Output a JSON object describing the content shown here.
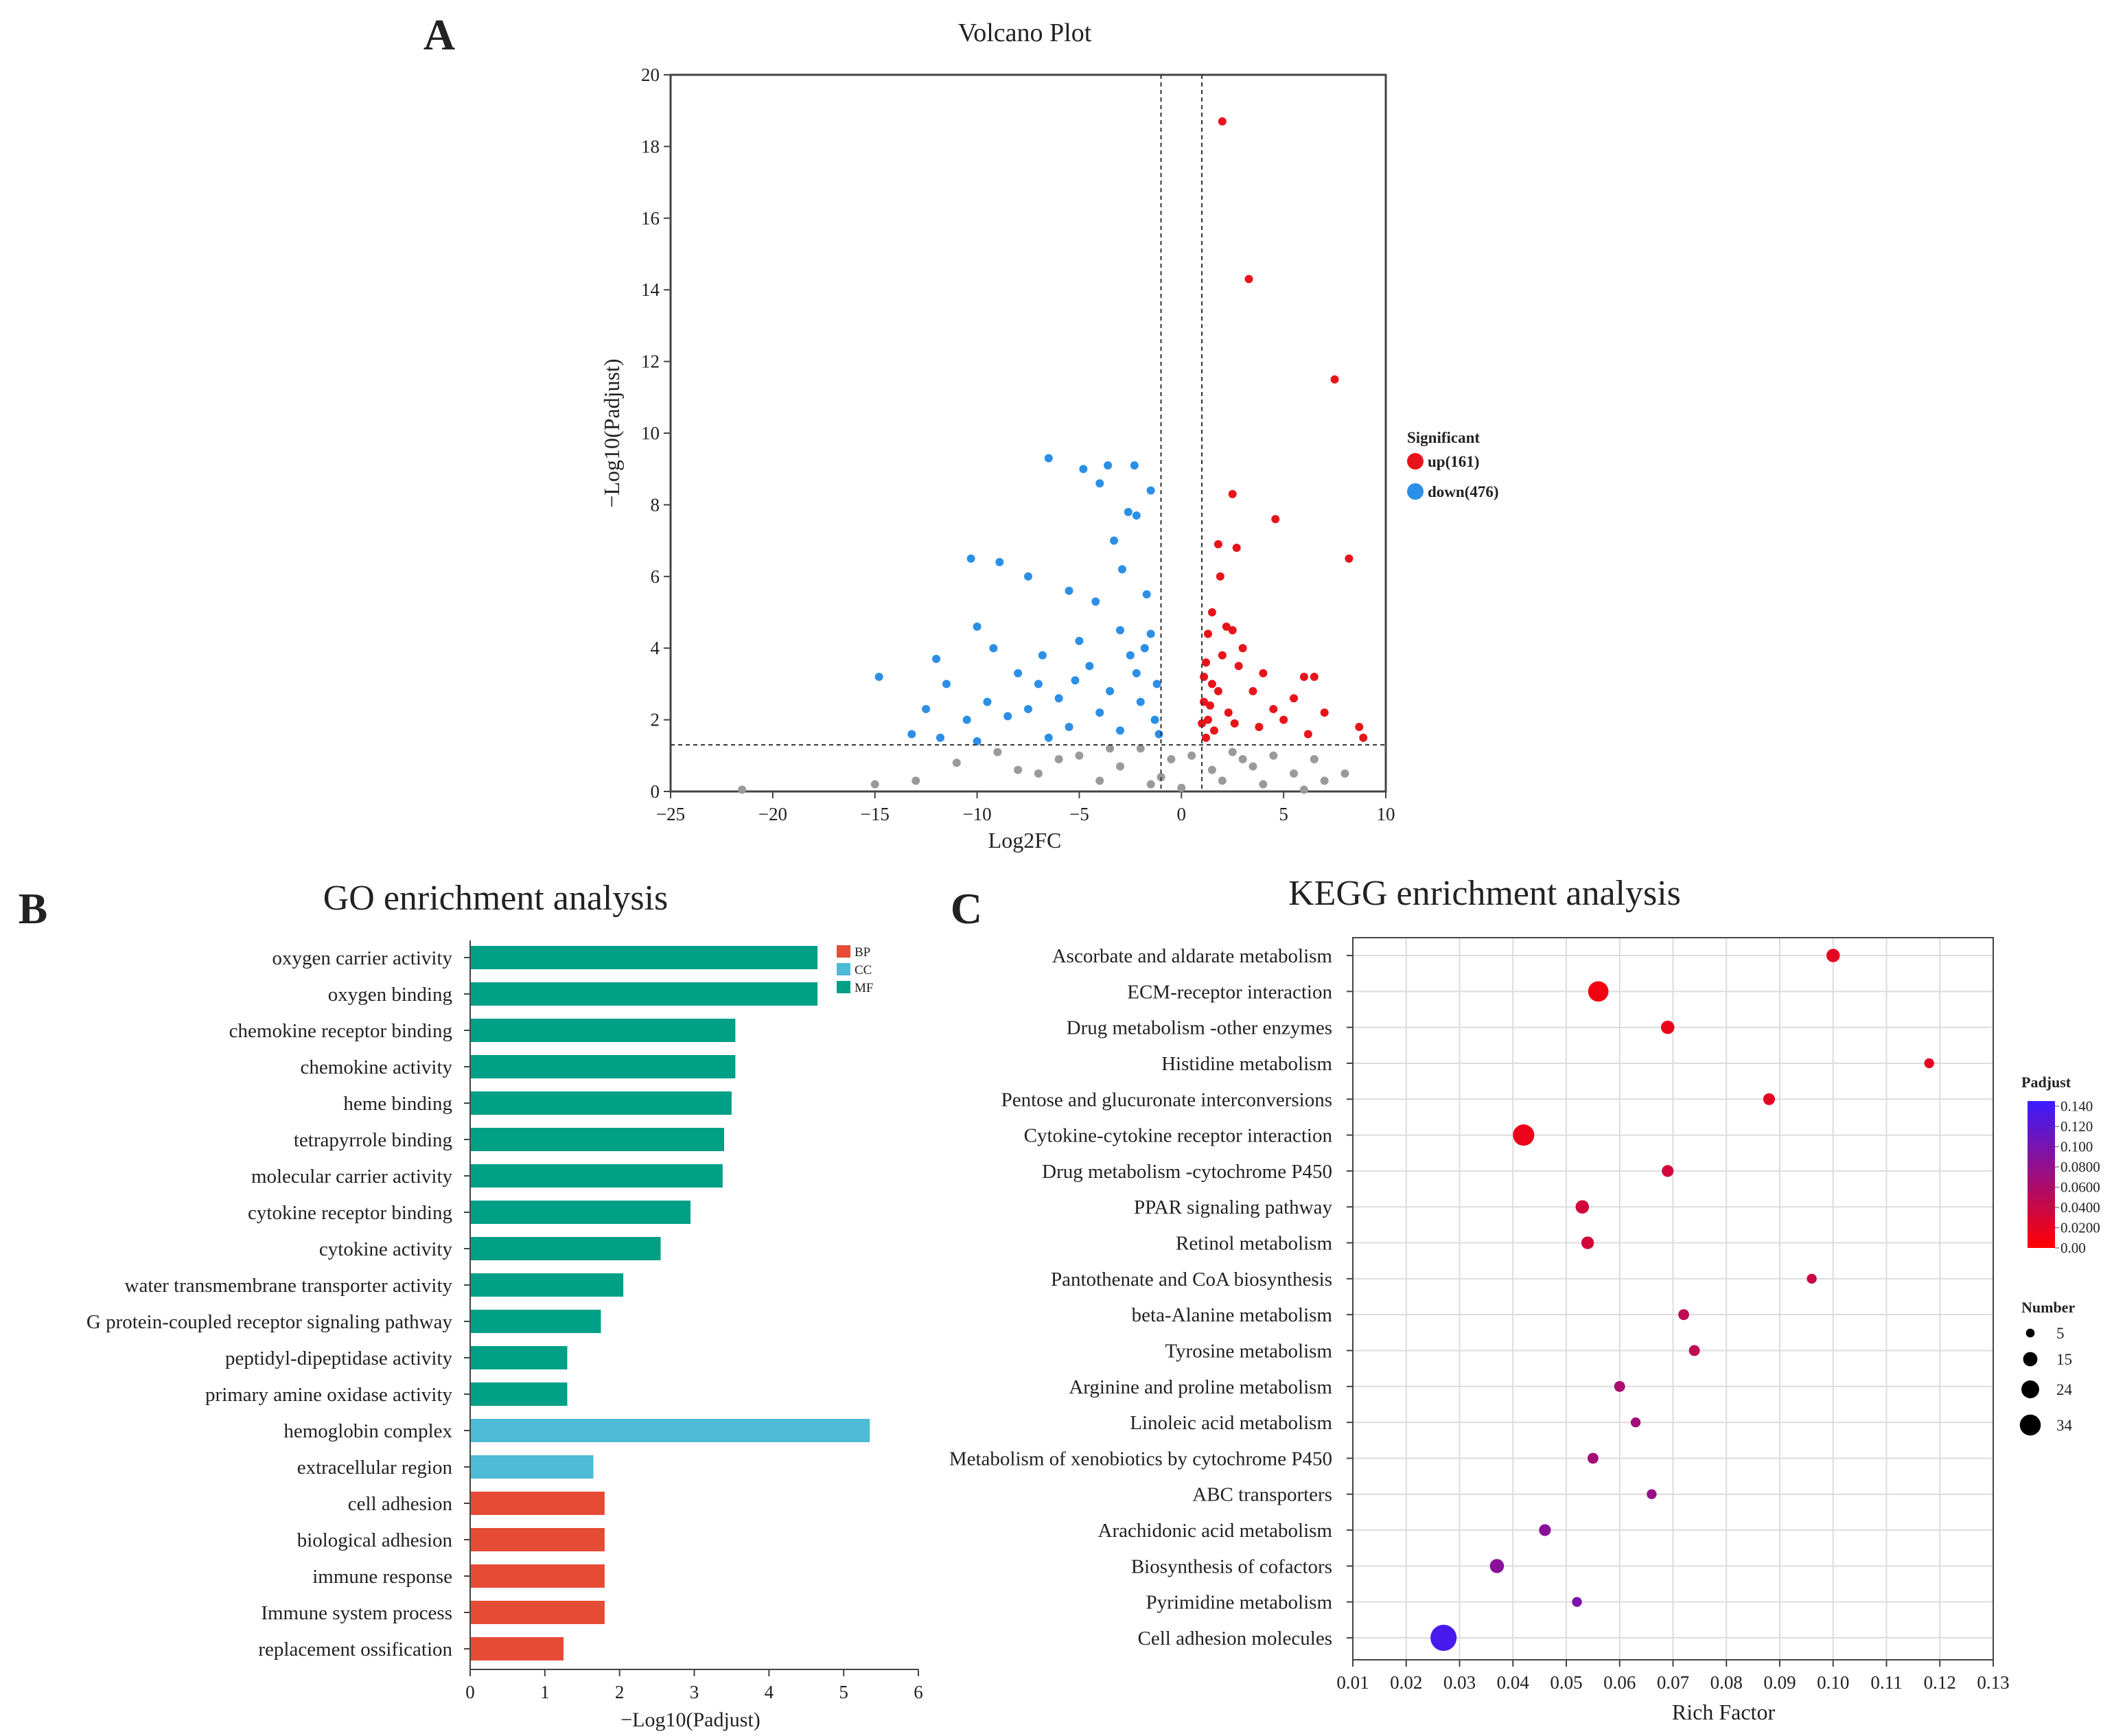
{
  "panels": {
    "a": "A",
    "b": "B",
    "c": "C"
  },
  "chart_data": [
    {
      "type": "scatter",
      "title": "Volcano Plot",
      "xlabel": "Log2FC",
      "ylabel": "−Log10(Padjust)",
      "xlim": [
        -25,
        10
      ],
      "ylim": [
        0,
        20
      ],
      "xticks": [
        -25,
        -20,
        -15,
        -10,
        -5,
        0,
        5,
        10
      ],
      "yticks": [
        0,
        2,
        4,
        6,
        8,
        10,
        12,
        14,
        16,
        18,
        20
      ],
      "thresholds": {
        "log2fc": [
          -1,
          1
        ],
        "neg_log10_padj": 1.3
      },
      "legend": {
        "title": "Significant",
        "placement": "right"
      },
      "series": [
        {
          "name": "up(161)",
          "color": "#e8141b",
          "points": [
            [
              2.0,
              18.7
            ],
            [
              3.3,
              14.3
            ],
            [
              7.5,
              11.5
            ],
            [
              2.5,
              8.3
            ],
            [
              4.6,
              7.6
            ],
            [
              8.2,
              6.5
            ],
            [
              1.8,
              6.9
            ],
            [
              2.7,
              6.8
            ],
            [
              1.9,
              6.0
            ],
            [
              1.5,
              5.0
            ],
            [
              2.2,
              4.6
            ],
            [
              2.5,
              4.5
            ],
            [
              1.3,
              4.4
            ],
            [
              3.0,
              4.0
            ],
            [
              2.0,
              3.8
            ],
            [
              1.2,
              3.6
            ],
            [
              2.8,
              3.5
            ],
            [
              4.0,
              3.3
            ],
            [
              6.0,
              3.2
            ],
            [
              6.5,
              3.2
            ],
            [
              5.5,
              2.6
            ],
            [
              7.0,
              2.2
            ],
            [
              8.7,
              1.8
            ],
            [
              8.9,
              1.5
            ],
            [
              3.5,
              2.8
            ],
            [
              4.5,
              2.3
            ],
            [
              5.0,
              2.0
            ],
            [
              6.2,
              1.6
            ],
            [
              1.1,
              2.5
            ],
            [
              1.3,
              2.0
            ],
            [
              1.5,
              3.0
            ],
            [
              1.6,
              1.7
            ],
            [
              1.2,
              1.5
            ],
            [
              2.3,
              2.2
            ],
            [
              1.8,
              2.8
            ],
            [
              1.1,
              3.2
            ],
            [
              2.6,
              1.9
            ],
            [
              3.8,
              1.8
            ],
            [
              1.4,
              2.4
            ],
            [
              1.0,
              1.9
            ]
          ]
        },
        {
          "name": "down(476)",
          "color": "#2b8fe6",
          "points": [
            [
              -6.5,
              9.3
            ],
            [
              -4.8,
              9.0
            ],
            [
              -3.6,
              9.1
            ],
            [
              -2.3,
              9.1
            ],
            [
              -4.0,
              8.6
            ],
            [
              -1.5,
              8.4
            ],
            [
              -2.6,
              7.8
            ],
            [
              -2.2,
              7.7
            ],
            [
              -3.3,
              7.0
            ],
            [
              -10.3,
              6.5
            ],
            [
              -8.9,
              6.4
            ],
            [
              -7.5,
              6.0
            ],
            [
              -5.5,
              5.6
            ],
            [
              -4.2,
              5.3
            ],
            [
              -1.7,
              5.5
            ],
            [
              -2.9,
              6.2
            ],
            [
              -10.0,
              4.6
            ],
            [
              -12.0,
              3.7
            ],
            [
              -14.8,
              3.2
            ],
            [
              -11.5,
              3.0
            ],
            [
              -9.2,
              4.0
            ],
            [
              -6.8,
              3.8
            ],
            [
              -5.0,
              4.2
            ],
            [
              -3.0,
              4.5
            ],
            [
              -1.5,
              4.4
            ],
            [
              -8.0,
              3.3
            ],
            [
              -7.0,
              3.0
            ],
            [
              -4.5,
              3.5
            ],
            [
              -2.5,
              3.8
            ],
            [
              -1.2,
              3.0
            ],
            [
              -13.2,
              1.6
            ],
            [
              -11.8,
              1.5
            ],
            [
              -10.5,
              2.0
            ],
            [
              -9.5,
              2.5
            ],
            [
              -8.5,
              2.1
            ],
            [
              -7.5,
              2.3
            ],
            [
              -6.0,
              2.6
            ],
            [
              -5.5,
              1.8
            ],
            [
              -4.0,
              2.2
            ],
            [
              -3.5,
              2.8
            ],
            [
              -2.0,
              2.5
            ],
            [
              -1.3,
              2.0
            ],
            [
              -1.1,
              1.6
            ],
            [
              -3.0,
              1.7
            ],
            [
              -2.2,
              3.3
            ],
            [
              -1.8,
              4.0
            ],
            [
              -6.5,
              1.5
            ],
            [
              -10.0,
              1.4
            ],
            [
              -12.5,
              2.3
            ],
            [
              -5.2,
              3.1
            ]
          ]
        },
        {
          "color": "#9a9a9a",
          "points": [
            [
              -21.5,
              0.05
            ],
            [
              -15,
              0.2
            ],
            [
              -13,
              0.3
            ],
            [
              -11,
              0.8
            ],
            [
              -9,
              1.1
            ],
            [
              -8,
              0.6
            ],
            [
              -7,
              0.5
            ],
            [
              -6,
              0.9
            ],
            [
              -5,
              1.0
            ],
            [
              -4,
              0.3
            ],
            [
              -3.5,
              1.2
            ],
            [
              -3,
              0.7
            ],
            [
              -2,
              1.2
            ],
            [
              -1.5,
              0.2
            ],
            [
              -1,
              0.4
            ],
            [
              -0.5,
              0.9
            ],
            [
              0,
              0.1
            ],
            [
              0.5,
              1.0
            ],
            [
              1.5,
              0.6
            ],
            [
              2,
              0.3
            ],
            [
              2.5,
              1.1
            ],
            [
              3,
              0.9
            ],
            [
              3.5,
              0.7
            ],
            [
              4,
              0.2
            ],
            [
              4.5,
              1.0
            ],
            [
              5.5,
              0.5
            ],
            [
              6,
              0.05
            ],
            [
              6.5,
              0.9
            ],
            [
              7,
              0.3
            ],
            [
              8,
              0.5
            ]
          ]
        }
      ]
    },
    {
      "type": "bar",
      "orientation": "horizontal",
      "title": "GO enrichment analysis",
      "xlabel": "−Log10(Padjust)",
      "xlim": [
        0,
        6
      ],
      "xticks": [
        0,
        1,
        2,
        3,
        4,
        5,
        6
      ],
      "legend": {
        "placement": "top-right",
        "entries": [
          {
            "name": "BP",
            "color": "#e64b35"
          },
          {
            "name": "CC",
            "color": "#4dbbd5"
          },
          {
            "name": "MF",
            "color": "#00a087"
          }
        ]
      },
      "categories": [
        "oxygen carrier activity",
        "oxygen binding",
        "chemokine receptor binding",
        "chemokine activity",
        "heme binding",
        "tetrapyrrole binding",
        "molecular carrier activity",
        "cytokine receptor binding",
        "cytokine activity",
        "water transmembrane transporter activity",
        "G protein-coupled receptor signaling pathway",
        "peptidyl-dipeptidase activity",
        "primary amine oxidase activity",
        "hemoglobin complex",
        "extracellular region",
        "cell adhesion",
        "biological adhesion",
        "immune response",
        "Immune system process",
        "replacement ossification"
      ],
      "values": [
        4.65,
        4.65,
        3.55,
        3.55,
        3.5,
        3.4,
        3.38,
        2.95,
        2.55,
        2.05,
        1.75,
        1.3,
        1.3,
        5.35,
        1.65,
        1.8,
        1.8,
        1.8,
        1.8,
        1.25
      ],
      "groups": [
        "MF",
        "MF",
        "MF",
        "MF",
        "MF",
        "MF",
        "MF",
        "MF",
        "MF",
        "MF",
        "MF",
        "MF",
        "MF",
        "CC",
        "CC",
        "BP",
        "BP",
        "BP",
        "BP",
        "BP"
      ]
    },
    {
      "type": "scatter",
      "subtype": "bubble",
      "title": "KEGG enrichment analysis",
      "xlabel": "Rich Factor",
      "xlim": [
        0.01,
        0.13
      ],
      "xticks": [
        "0.01",
        "0.02",
        "0.03",
        "0.04",
        "0.05",
        "0.06",
        "0.07",
        "0.08",
        "0.09",
        "0.10",
        "0.11",
        "0.12",
        "0.13"
      ],
      "grid": true,
      "categories": [
        "Ascorbate and aldarate metabolism",
        "ECM-receptor interaction",
        "Drug metabolism -other enzymes",
        "Histidine metabolism",
        "Pentose and glucuronate interconversions",
        "Cytokine-cytokine receptor interaction",
        "Drug metabolism -cytochrome P450",
        "PPAR signaling pathway",
        "Retinol metabolism",
        "Pantothenate and CoA biosynthesis",
        "beta-Alanine metabolism",
        "Tyrosine metabolism",
        "Arginine and proline metabolism",
        "Linoleic acid metabolism",
        "Metabolism of xenobiotics by cytochrome P450",
        "ABC transporters",
        "Arachidonic acid metabolism",
        "Biosynthesis of cofactors",
        "Pyrimidine metabolism",
        "Cell adhesion molecules"
      ],
      "rich_factor": [
        0.1,
        0.056,
        0.069,
        0.118,
        0.088,
        0.042,
        0.069,
        0.053,
        0.054,
        0.096,
        0.072,
        0.074,
        0.06,
        0.063,
        0.055,
        0.066,
        0.046,
        0.037,
        0.052,
        0.027
      ],
      "number": [
        8,
        20,
        8,
        4,
        6,
        22,
        6,
        8,
        7,
        4,
        5,
        5,
        5,
        4,
        5,
        4,
        6,
        9,
        4,
        34
      ],
      "padjust": [
        0.02,
        0.01,
        0.015,
        0.02,
        0.02,
        0.015,
        0.035,
        0.035,
        0.035,
        0.04,
        0.05,
        0.05,
        0.065,
        0.07,
        0.07,
        0.08,
        0.09,
        0.09,
        0.1,
        0.14
      ],
      "color_scale": {
        "title": "Padjust",
        "low_color": "#ff0000",
        "high_color": "#3b1cff",
        "range": [
          0,
          0.15
        ],
        "ticks": [
          "0.140",
          "0.120",
          "0.100",
          "0.0800",
          "0.0600",
          "0.0400",
          "0.0200",
          "0.00"
        ],
        "tick_values": [
          0.14,
          0.12,
          0.1,
          0.08,
          0.06,
          0.04,
          0.02,
          0
        ]
      },
      "size_legend": {
        "title": "Number",
        "values": [
          5,
          15,
          24,
          34
        ],
        "labels": [
          "5",
          "15",
          "24",
          "34"
        ]
      }
    }
  ]
}
